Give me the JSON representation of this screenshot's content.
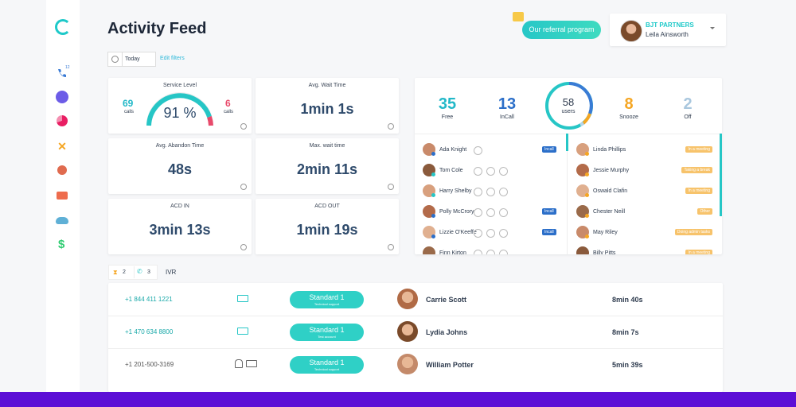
{
  "sidebar": {
    "badge": "12"
  },
  "header": {
    "title": "Activity Feed",
    "referral": "Our referral program",
    "company": "BJT PARTNERS",
    "user": "Leila Ainsworth"
  },
  "filters": {
    "date": "Today",
    "edit": "Edit filters"
  },
  "stats": {
    "service_level": {
      "title": "Service Level",
      "left_value": "69",
      "left_label": "calls",
      "center": "91 %",
      "right_value": "6",
      "right_label": "calls"
    },
    "cards": [
      {
        "title": "Avg. Wait Time",
        "value": "1min 1s"
      },
      {
        "title": "Avg. Abandon Time",
        "value": "48s"
      },
      {
        "title": "Max. wait time",
        "value": "2min 11s"
      },
      {
        "title": "ACD IN",
        "value": "3min 13s"
      },
      {
        "title": "ACD OUT",
        "value": "1min 19s"
      }
    ]
  },
  "users": {
    "counts": [
      {
        "value": "35",
        "label": "Free"
      },
      {
        "value": "13",
        "label": "InCall"
      },
      {
        "value": "58",
        "label": "users"
      },
      {
        "value": "8",
        "label": "Snooze"
      },
      {
        "value": "2",
        "label": "Off"
      }
    ],
    "available": [
      {
        "name": "Ada Knight",
        "status": "Incall"
      },
      {
        "name": "Tom Cole"
      },
      {
        "name": "Harry Shelby"
      },
      {
        "name": "Polly McCrory",
        "status": "Incall"
      },
      {
        "name": "Lizzie O'Keeffe",
        "status": "Incall"
      },
      {
        "name": "Finn Kirton"
      }
    ],
    "busy": [
      {
        "name": "Linda Phillips",
        "status": "In a meeting"
      },
      {
        "name": "Jessie Murphy",
        "status": "Taking a break"
      },
      {
        "name": "Oswald Clafin",
        "status": "In a meeting"
      },
      {
        "name": "Chester Neill",
        "status": "Other"
      },
      {
        "name": "May Riley",
        "status": "Doing admin tasks"
      },
      {
        "name": "Billy Pitts",
        "status": "In a meeting"
      }
    ]
  },
  "queue": {
    "waiting": "2",
    "calls": "3",
    "ivr": "IVR"
  },
  "calls": [
    {
      "phone": "+1 844 411 1221",
      "queue": "Standard 1",
      "detail": "Technical support",
      "caller": "Carrie Scott",
      "duration": "8min 40s"
    },
    {
      "phone": "+1 470 634 8800",
      "queue": "Standard 1",
      "detail": "Test account",
      "caller": "Lydia Johns",
      "duration": "8min 7s"
    },
    {
      "phone": "+1 201-500-3169",
      "queue": "Standard 1",
      "detail": "Technical support",
      "caller": "William Potter",
      "duration": "5min 39s"
    }
  ]
}
